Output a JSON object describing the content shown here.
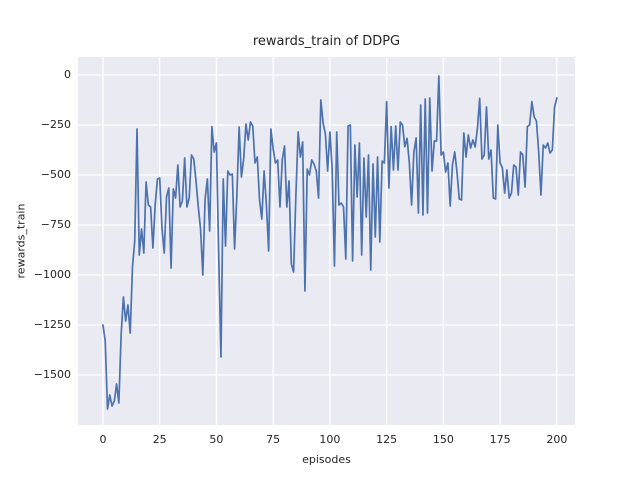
{
  "figure": {
    "title": "rewards_train of DDPG",
    "x_axis_label": "episodes",
    "y_axis_label": "rewards_train"
  },
  "chart_data": {
    "type": "line",
    "title": "rewards_train of DDPG",
    "xlabel": "episodes",
    "ylabel": "rewards_train",
    "grid": true,
    "legend": false,
    "xlim": [
      -11,
      208
    ],
    "ylim": [
      -1750,
      90
    ],
    "xticks": {
      "values": [
        0,
        25,
        50,
        75,
        100,
        125,
        150,
        175,
        200
      ],
      "labels": [
        "0",
        "25",
        "50",
        "75",
        "100",
        "125",
        "150",
        "175",
        "200"
      ]
    },
    "yticks": {
      "values": [
        0,
        -250,
        -500,
        -750,
        -1000,
        -1250,
        -1500
      ],
      "labels": [
        "0",
        "−250",
        "−500",
        "−750",
        "−1000",
        "−1250",
        "−1500"
      ]
    },
    "style": {
      "figure_background": "#ffffff",
      "axes_background": "#eaeaf2",
      "grid_color": "#ffffff",
      "line_color": "#4c72b0",
      "text_color": "#262626"
    },
    "series": [
      {
        "name": "rewards_train",
        "color": "#4c72b0",
        "x_start": 0,
        "x_step": 1,
        "values": [
          -1250,
          -1330,
          -1670,
          -1600,
          -1655,
          -1630,
          -1545,
          -1640,
          -1300,
          -1110,
          -1230,
          -1150,
          -1290,
          -960,
          -830,
          -270,
          -900,
          -770,
          -890,
          -535,
          -650,
          -660,
          -865,
          -650,
          -520,
          -515,
          -765,
          -890,
          -610,
          -565,
          -965,
          -570,
          -615,
          -450,
          -660,
          -630,
          -415,
          -660,
          -615,
          -400,
          -420,
          -530,
          -660,
          -770,
          -1000,
          -620,
          -520,
          -780,
          -258,
          -385,
          -340,
          -900,
          -1410,
          -520,
          -855,
          -480,
          -500,
          -495,
          -870,
          -600,
          -260,
          -510,
          -420,
          -245,
          -325,
          -235,
          -255,
          -440,
          -410,
          -625,
          -720,
          -480,
          -645,
          -880,
          -270,
          -370,
          -440,
          -425,
          -660,
          -425,
          -355,
          -660,
          -530,
          -945,
          -985,
          -605,
          -285,
          -410,
          -335,
          -1080,
          -470,
          -500,
          -425,
          -445,
          -480,
          -615,
          -125,
          -240,
          -295,
          -480,
          -285,
          -470,
          -955,
          -285,
          -650,
          -640,
          -660,
          -920,
          -255,
          -250,
          -930,
          -350,
          -610,
          -340,
          -900,
          -415,
          -710,
          -400,
          -975,
          -445,
          -810,
          -410,
          -835,
          -430,
          -440,
          -133,
          -565,
          -258,
          -475,
          -255,
          -475,
          -235,
          -250,
          -358,
          -317,
          -440,
          -650,
          -385,
          -315,
          -690,
          -150,
          -700,
          -120,
          -690,
          -115,
          -480,
          -330,
          -330,
          -5,
          -400,
          -385,
          -485,
          -440,
          -655,
          -450,
          -385,
          -485,
          -620,
          -625,
          -290,
          -410,
          -300,
          -365,
          -325,
          -360,
          -267,
          -117,
          -420,
          -400,
          -160,
          -420,
          -375,
          -615,
          -620,
          -250,
          -440,
          -465,
          -590,
          -475,
          -615,
          -590,
          -450,
          -460,
          -600,
          -385,
          -400,
          -560,
          -258,
          -250,
          -133,
          -210,
          -230,
          -385,
          -600,
          -350,
          -365,
          -340,
          -390,
          -375,
          -160,
          -115
        ]
      }
    ]
  }
}
